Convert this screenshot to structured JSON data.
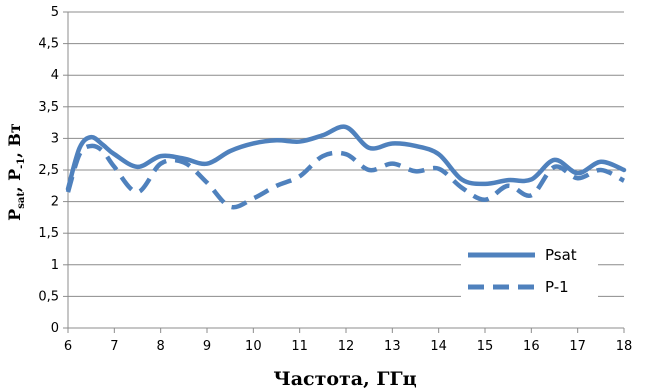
{
  "chart_data": {
    "type": "line",
    "xlabel": "Частота, ГГц",
    "ylabel_parts": {
      "P1": "P",
      "sub1": "sat",
      "sep": ", ",
      "P2": "P",
      "sub2": "-1",
      "unit": ", Вт"
    },
    "xlim": [
      6,
      18
    ],
    "ylim": [
      0,
      5
    ],
    "x_ticks": [
      "6",
      "7",
      "8",
      "9",
      "10",
      "11",
      "12",
      "13",
      "14",
      "15",
      "16",
      "17",
      "18"
    ],
    "y_ticks": [
      "0",
      "0,5",
      "1",
      "1,5",
      "2",
      "2,5",
      "3",
      "3,5",
      "4",
      "4,5",
      "5"
    ],
    "grid": "horizontal",
    "legend_position": "bottom-right",
    "series": [
      {
        "name": "Psat",
        "color": "#4F81BD",
        "dash": "solid",
        "x": [
          6.0,
          6.25,
          6.5,
          6.75,
          7.0,
          7.5,
          8.0,
          8.5,
          9.0,
          9.5,
          10.0,
          10.5,
          11.0,
          11.5,
          12.0,
          12.5,
          13.0,
          13.5,
          14.0,
          14.5,
          15.0,
          15.5,
          16.0,
          16.5,
          17.0,
          17.5,
          18.0
        ],
        "y": [
          2.2,
          2.85,
          3.02,
          2.9,
          2.75,
          2.55,
          2.72,
          2.68,
          2.6,
          2.8,
          2.92,
          2.97,
          2.95,
          3.05,
          3.18,
          2.85,
          2.92,
          2.88,
          2.75,
          2.35,
          2.28,
          2.34,
          2.35,
          2.66,
          2.45,
          2.63,
          2.5
        ]
      },
      {
        "name": "P-1",
        "color": "#4F81BD",
        "dash": "dashed",
        "x": [
          6.0,
          6.25,
          6.5,
          6.75,
          7.0,
          7.5,
          8.0,
          8.5,
          9.0,
          9.5,
          10.0,
          10.5,
          11.0,
          11.5,
          12.0,
          12.5,
          13.0,
          13.5,
          14.0,
          14.5,
          15.0,
          15.5,
          16.0,
          16.5,
          17.0,
          17.5,
          18.0
        ],
        "y": [
          2.15,
          2.75,
          2.88,
          2.8,
          2.55,
          2.15,
          2.6,
          2.62,
          2.3,
          1.92,
          2.05,
          2.25,
          2.4,
          2.72,
          2.75,
          2.5,
          2.6,
          2.48,
          2.52,
          2.22,
          2.03,
          2.25,
          2.1,
          2.55,
          2.37,
          2.5,
          2.33
        ]
      }
    ]
  }
}
